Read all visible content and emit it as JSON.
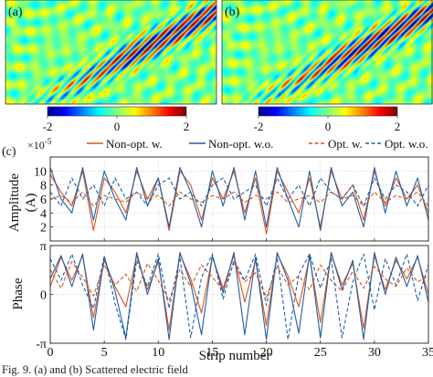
{
  "panel_labels": {
    "a": "(a)",
    "b": "(b)",
    "c": "(c)"
  },
  "colorbar_ticks": [
    "-2",
    "0",
    "2"
  ],
  "colors": {
    "non_opt_w": "#d9541a",
    "non_opt_wo": "#1f5fa6",
    "opt_w": "#d9541a",
    "opt_wo": "#1f5fa6"
  },
  "caption_text": "Fig. 9. (a) and (b) Scattered electric field",
  "chart_data": [
    {
      "type": "line",
      "panel": "(c) top",
      "multiplier_label": "×10",
      "multiplier_exp": "-5",
      "ylabel": "Amplitude",
      "ylabel_unit": "(A)",
      "xlim": [
        0,
        35
      ],
      "ylim": [
        0,
        12
      ],
      "yticks": [
        "2",
        "4",
        "6",
        "8",
        "10"
      ],
      "ytick_values": [
        2,
        4,
        6,
        8,
        10
      ],
      "grid": true,
      "legend_position": "top",
      "x": [
        0,
        1,
        2,
        3,
        4,
        5,
        6,
        7,
        8,
        9,
        10,
        11,
        12,
        13,
        14,
        15,
        16,
        17,
        18,
        19,
        20,
        21,
        22,
        23,
        24,
        25,
        26,
        27,
        28,
        29,
        30,
        31,
        32,
        33,
        34,
        35
      ],
      "series": [
        {
          "name": "Non-opt. w.",
          "style": "solid",
          "color": "#d9541a",
          "values": [
            9.5,
            7,
            5,
            10,
            1.5,
            9,
            7,
            4,
            10,
            6,
            9,
            1.5,
            10,
            8,
            3,
            9,
            6,
            10,
            4,
            9,
            1,
            10,
            7,
            4,
            9,
            2,
            10,
            6,
            8,
            3,
            10,
            5,
            9,
            6,
            8,
            4
          ]
        },
        {
          "name": "Non-opt. w.o.",
          "style": "solid",
          "color": "#1f5fa6",
          "values": [
            10.5,
            6,
            4,
            10.5,
            3,
            10,
            6,
            3,
            10.5,
            5,
            9,
            2,
            10.5,
            7,
            2,
            10,
            5,
            10.5,
            3,
            10,
            2,
            10.5,
            6,
            2,
            10,
            1.5,
            10.5,
            5,
            7,
            2,
            10.5,
            4,
            10,
            5,
            9,
            3
          ]
        },
        {
          "name": "Opt. w.",
          "style": "dashed",
          "color": "#d9541a",
          "values": [
            6,
            6.5,
            5.5,
            7,
            5,
            6.5,
            6,
            5.5,
            7,
            6,
            6.5,
            5,
            7,
            6,
            5.5,
            6.5,
            6,
            7,
            5.5,
            6.5,
            6,
            7,
            5.5,
            6,
            6.5,
            5.5,
            7,
            6,
            6.5,
            5,
            7,
            5.5,
            6.5,
            6,
            7,
            5
          ]
        },
        {
          "name": "Opt. w.o.",
          "style": "dashed",
          "color": "#1f5fa6",
          "values": [
            7,
            5,
            9,
            6,
            8,
            5,
            9,
            6,
            7,
            5,
            8,
            9,
            6,
            7,
            5,
            8,
            9,
            6,
            7,
            8,
            5,
            9,
            6,
            8,
            5,
            9,
            7,
            6,
            8,
            5,
            9,
            6,
            8,
            7,
            5,
            8
          ]
        }
      ]
    },
    {
      "type": "line",
      "panel": "(c) bottom",
      "ylabel": "Phase",
      "xlabel": "Strip number",
      "xlim": [
        0,
        35
      ],
      "ylim": [
        -3.1416,
        3.1416
      ],
      "yticks": [
        "π",
        "0",
        "-π"
      ],
      "ytick_values": [
        3.1416,
        0,
        -3.1416
      ],
      "xticks": [
        "0",
        "5",
        "10",
        "15",
        "20",
        "25",
        "30",
        "35"
      ],
      "xtick_values": [
        0,
        5,
        10,
        15,
        20,
        25,
        30,
        35
      ],
      "grid": true,
      "x": [
        0,
        1,
        2,
        3,
        4,
        5,
        6,
        7,
        8,
        9,
        10,
        11,
        12,
        13,
        14,
        15,
        16,
        17,
        18,
        19,
        20,
        21,
        22,
        23,
        24,
        25,
        26,
        27,
        28,
        29,
        30,
        31,
        32,
        33,
        34,
        35
      ],
      "series": [
        {
          "name": "Non-opt. w.",
          "style": "solid",
          "color": "#d9541a",
          "values": [
            0.5,
            2.4,
            0.9,
            2.5,
            -1.5,
            2.2,
            0.5,
            -0.8,
            2.5,
            0.3,
            2.1,
            -2.3,
            2.6,
            1.0,
            -1.2,
            2.4,
            0.4,
            2.5,
            -0.5,
            2.2,
            -2.0,
            2.6,
            1.2,
            -0.8,
            2.4,
            -1.8,
            2.6,
            0.6,
            2.0,
            -2.2,
            2.5,
            0.3,
            2.2,
            1.0,
            2.4,
            0.0
          ]
        },
        {
          "name": "Non-opt. w.o.",
          "style": "solid",
          "color": "#1f5fa6",
          "values": [
            1.0,
            2.5,
            0.5,
            2.6,
            -2.3,
            2.4,
            0.2,
            -2.8,
            2.7,
            0.0,
            2.3,
            -2.9,
            2.7,
            0.7,
            -2.6,
            2.5,
            0.1,
            2.7,
            -2.6,
            2.4,
            -2.9,
            2.7,
            0.9,
            -2.5,
            2.6,
            -2.8,
            2.7,
            0.3,
            2.2,
            -2.9,
            2.7,
            0.0,
            2.4,
            0.5,
            2.5,
            -0.5
          ]
        },
        {
          "name": "Opt. w.",
          "style": "dashed",
          "color": "#d9541a",
          "values": [
            1.6,
            0.4,
            2.1,
            1.1,
            -0.1,
            1.9,
            0.6,
            1.3,
            0.2,
            2.0,
            0.9,
            -0.4,
            1.6,
            0.5,
            1.9,
            1.1,
            0.3,
            2.0,
            0.8,
            1.4,
            -0.2,
            1.8,
            0.6,
            1.2,
            0.3,
            1.9,
            0.9,
            0.2,
            1.5,
            0.4,
            1.8,
            1.0,
            0.5,
            1.7,
            0.8,
            1.2
          ]
        },
        {
          "name": "Opt. w.o.",
          "style": "dashed",
          "color": "#1f5fa6",
          "values": [
            2.3,
            0.9,
            2.6,
            0.6,
            -0.9,
            2.5,
            -0.6,
            -2.9,
            2.2,
            0.5,
            2.6,
            -0.9,
            2.4,
            -2.8,
            1.1,
            2.6,
            -0.3,
            2.2,
            0.9,
            2.6,
            -0.7,
            2.4,
            -2.9,
            1.3,
            2.6,
            0.4,
            2.3,
            -2.8,
            0.8,
            2.6,
            -1.0,
            2.3,
            0.6,
            2.6,
            -0.4,
            1.9
          ]
        }
      ]
    }
  ]
}
